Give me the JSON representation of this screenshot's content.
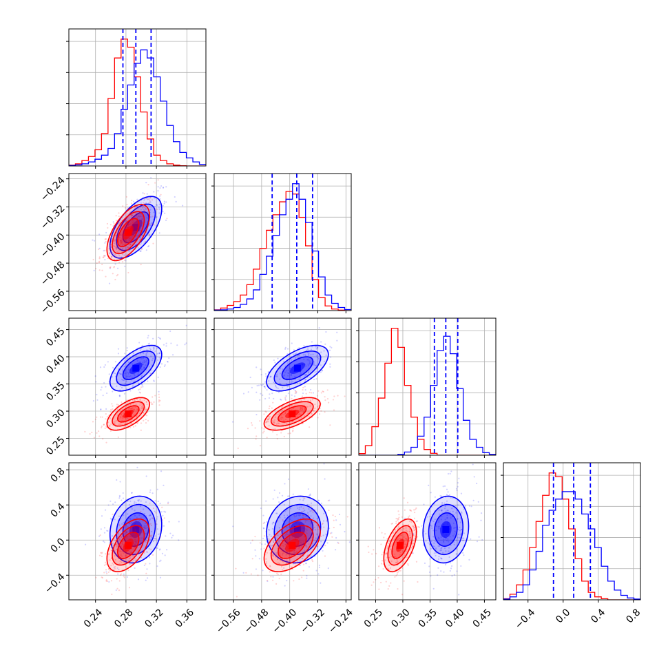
{
  "chart_data": {
    "type": "corner",
    "grid": true,
    "params": [
      {
        "range": [
          0.205,
          0.385
        ],
        "ticks": [
          0.24,
          0.28,
          0.32,
          0.36
        ],
        "tick_labels": [
          "0.24",
          "0.28",
          "0.32",
          "0.36"
        ],
        "row_tick_labels": []
      },
      {
        "range": [
          -0.615,
          -0.225
        ],
        "ticks": [
          -0.56,
          -0.48,
          -0.4,
          -0.32,
          -0.24
        ],
        "tick_labels": [
          "−0.56",
          "−0.48",
          "−0.40",
          "−0.32",
          "−0.24"
        ],
        "row_tick_labels": [
          "−0.24",
          "−0.32",
          "−0.40",
          "−0.48",
          "−0.56"
        ]
      },
      {
        "range": [
          0.219,
          0.471
        ],
        "ticks": [
          0.25,
          0.3,
          0.35,
          0.4,
          0.45
        ],
        "tick_labels": [
          "0.25",
          "0.30",
          "0.35",
          "0.40",
          "0.45"
        ],
        "row_tick_labels": [
          "0.45",
          "0.40",
          "0.35",
          "0.30",
          "0.25"
        ]
      },
      {
        "range": [
          -0.68,
          0.88
        ],
        "ticks": [
          -0.4,
          0.0,
          0.4,
          0.8
        ],
        "tick_labels": [
          "−0.4",
          "0.0",
          "0.4",
          "0.8"
        ],
        "row_tick_labels": [
          "0.8",
          "0.4",
          "0.0",
          "−0.4"
        ]
      }
    ],
    "series": [
      {
        "color": "#0000ff",
        "mean": [
          0.293,
          -0.378,
          0.379,
          0.12
        ],
        "sd": [
          0.017,
          0.044,
          0.021,
          0.19
        ],
        "corr": [
          [
            0,
            1,
            0.6
          ],
          [
            0,
            2,
            0.6
          ],
          [
            1,
            2,
            0.6
          ],
          [
            0,
            3,
            0.15
          ],
          [
            1,
            3,
            0.1
          ],
          [
            2,
            3,
            0.1
          ]
        ]
      },
      {
        "color": "#ff0000",
        "mean": [
          0.283,
          -0.393,
          0.295,
          -0.06
        ],
        "sd": [
          0.014,
          0.04,
          0.015,
          0.15
        ],
        "corr": [
          [
            0,
            1,
            0.6
          ],
          [
            0,
            2,
            0.6
          ],
          [
            1,
            2,
            0.6
          ],
          [
            0,
            3,
            0.5
          ],
          [
            1,
            3,
            0.5
          ],
          [
            2,
            3,
            0.5
          ]
        ]
      }
    ],
    "quantiles": [
      [
        0.276,
        0.293,
        0.313
      ],
      [
        -0.45,
        -0.38,
        -0.335
      ],
      [
        0.358,
        0.379,
        0.401
      ],
      [
        -0.11,
        0.12,
        0.31
      ]
    ],
    "histograms": [
      {
        "edges": [
          0.205,
          0.385
        ],
        "blue": [
          0.2,
          0.4,
          0.8,
          1.5,
          2.5,
          4.0,
          6.5,
          12,
          21,
          30,
          38,
          43,
          40,
          33,
          24,
          15,
          9,
          5,
          3,
          1.5,
          0.6
        ],
        "red": [
          0.3,
          0.8,
          2,
          3.5,
          6,
          12,
          25,
          40,
          47,
          44,
          33,
          20,
          10,
          4,
          2,
          0.8,
          0.3,
          0.1,
          0,
          0,
          0
        ]
      },
      {
        "edges": [
          -0.615,
          -0.225
        ],
        "blue": [
          0.2,
          0.3,
          0.6,
          1.2,
          2.4,
          4.5,
          8,
          14,
          21,
          29,
          37,
          43,
          49,
          43,
          34,
          23,
          13,
          6,
          2.8,
          1.2,
          0.4
        ],
        "red": [
          0.3,
          1,
          2,
          3.5,
          6,
          10,
          16,
          24,
          31,
          37,
          42,
          46,
          45,
          36,
          25,
          12,
          5,
          1.8,
          0.6,
          0.2,
          0
        ]
      },
      {
        "edges": [
          0.219,
          0.471
        ],
        "blue": [
          0,
          0,
          0,
          0,
          0,
          0,
          0.3,
          1,
          2.5,
          6,
          12,
          22,
          33,
          37.5,
          32,
          21,
          11,
          5,
          2.5,
          0.8,
          0.3
        ],
        "red": [
          0.5,
          3,
          9,
          18,
          29,
          40,
          34,
          22,
          12,
          5,
          1.8,
          0.6,
          0,
          0,
          0,
          0,
          0,
          0,
          0,
          0,
          0
        ]
      },
      {
        "edges": [
          -0.68,
          0.88
        ],
        "blue": [
          0.2,
          0.8,
          2,
          4,
          8,
          13,
          20,
          24,
          27,
          29,
          29,
          27,
          23,
          19,
          14,
          9,
          5,
          2.6,
          1.2,
          0.5,
          0.2
        ],
        "red": [
          0.3,
          1.5,
          4,
          8,
          14,
          21,
          28,
          34,
          33,
          27,
          19,
          11,
          5,
          2,
          0.8,
          0.3,
          0,
          0,
          0,
          0,
          0
        ]
      }
    ]
  }
}
